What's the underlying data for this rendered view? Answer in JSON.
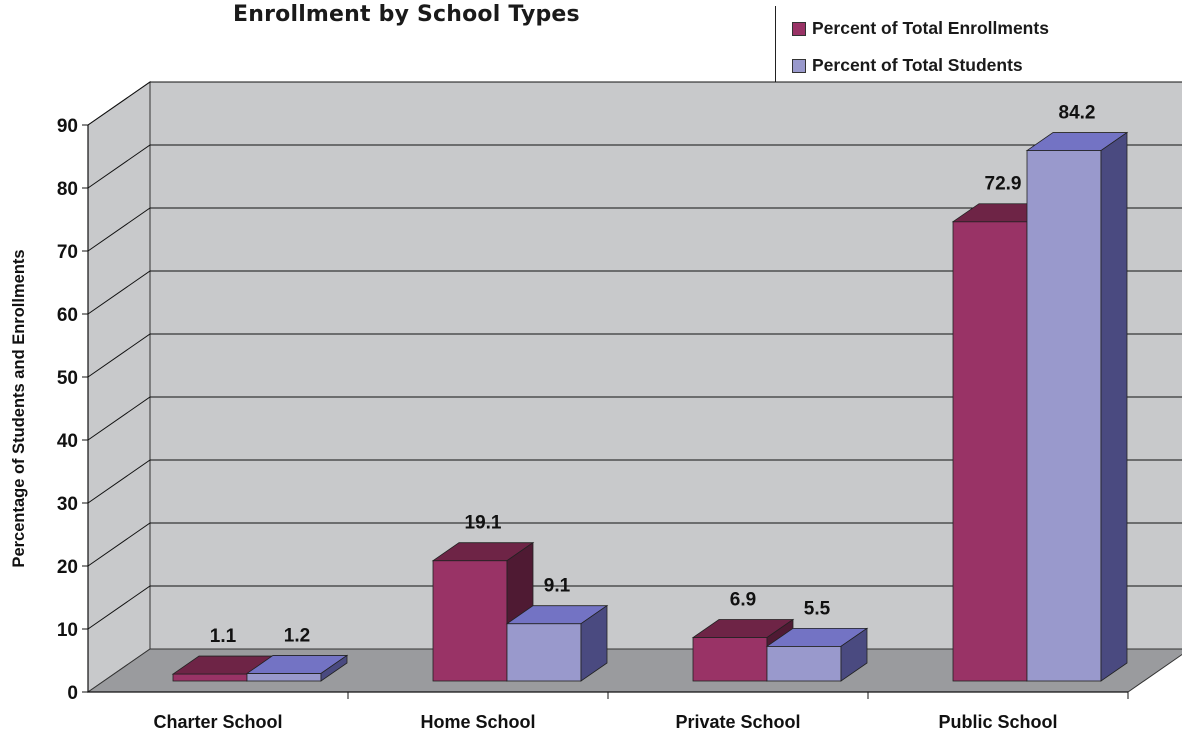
{
  "chart_data": {
    "type": "bar",
    "title": "Enrollment by School Types",
    "ylabel": "Percentage of Students and Enrollments",
    "xlabel": "",
    "categories": [
      "Charter School",
      "Home School",
      "Private School",
      "Public School"
    ],
    "series": [
      {
        "name": "Percent of Total Enrollments",
        "values": [
          1.1,
          19.1,
          6.9,
          72.9
        ],
        "value_labels": [
          "1.1",
          "19.1",
          "6.9",
          "72.9"
        ]
      },
      {
        "name": "Percent of Total Students",
        "values": [
          1.2,
          9.1,
          5.5,
          84.2
        ],
        "value_labels": [
          "1.2",
          "9.1",
          "5.5",
          "84.2"
        ]
      }
    ],
    "ylim": [
      0,
      90
    ],
    "yticks": [
      "0",
      "10",
      "20",
      "30",
      "40",
      "50",
      "60",
      "70",
      "80",
      "90"
    ],
    "grid": true,
    "legend_position": "top-right",
    "three_d": true
  },
  "colors": {
    "series_front": [
      "#993366",
      "#9999cc"
    ],
    "series_top": [
      "#6e2446",
      "#7373c4"
    ],
    "series_side": [
      "#4f1a33",
      "#4a4a80"
    ],
    "wall": "#c8c9cb",
    "floor": "#9a9b9e",
    "axis": "#111111"
  }
}
